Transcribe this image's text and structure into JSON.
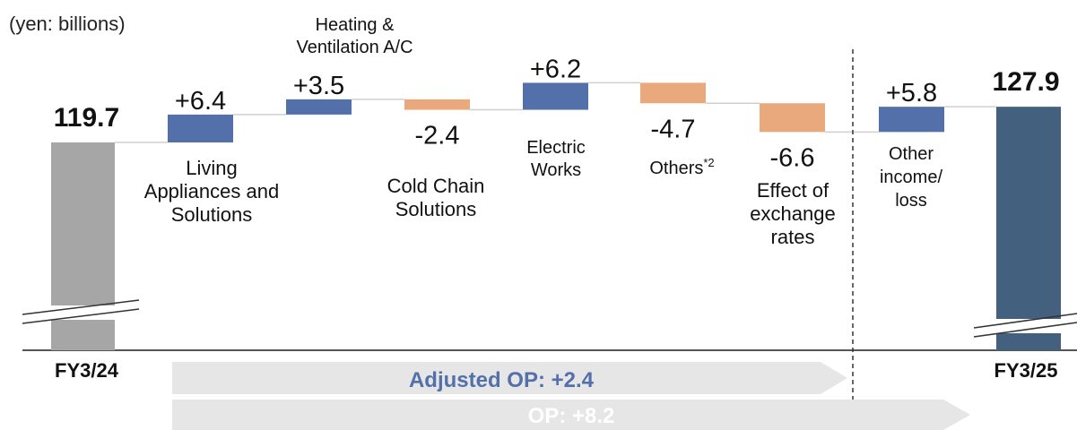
{
  "chart_data": {
    "type": "waterfall",
    "unit_label": "(yen: billions)",
    "start": {
      "label": "FY3/24",
      "value": 119.7,
      "display": "119.7"
    },
    "end": {
      "label": "FY3/25",
      "value": 127.9,
      "display": "127.9"
    },
    "steps": [
      {
        "lines": [
          "Living",
          "Appliances and",
          "Solutions"
        ],
        "delta": 6.4,
        "display": "+6.4"
      },
      {
        "lines": [
          "Heating &",
          "Ventilation A/C"
        ],
        "delta": 3.5,
        "display": "+3.5"
      },
      {
        "lines": [
          "Cold Chain",
          "Solutions"
        ],
        "delta": -2.4,
        "display": "-2.4"
      },
      {
        "lines": [
          "Electric",
          "Works"
        ],
        "delta": 6.2,
        "display": "+6.2"
      },
      {
        "lines": [
          "Others"
        ],
        "sup": "*2",
        "delta": -4.7,
        "display": "-4.7"
      },
      {
        "lines": [
          "Effect of",
          "exchange",
          "rates"
        ],
        "delta": -6.6,
        "display": "-6.6"
      },
      {
        "lines": [
          "Other",
          "income/",
          "loss"
        ],
        "delta": 5.8,
        "display": "+5.8"
      }
    ],
    "summary": [
      {
        "label": "Adjusted OP: +2.4"
      },
      {
        "label": "OP: +8.2"
      }
    ],
    "colors": {
      "start": "#a6a6a6",
      "end": "#44607f",
      "increase": "#5470ab",
      "decrease": "#eaa97d",
      "adjusted_text": "#5470ab",
      "op_text": "#ffffff",
      "arrow": "#e6e6e6",
      "connector": "#d0d0d0"
    },
    "axis_broken": true
  }
}
